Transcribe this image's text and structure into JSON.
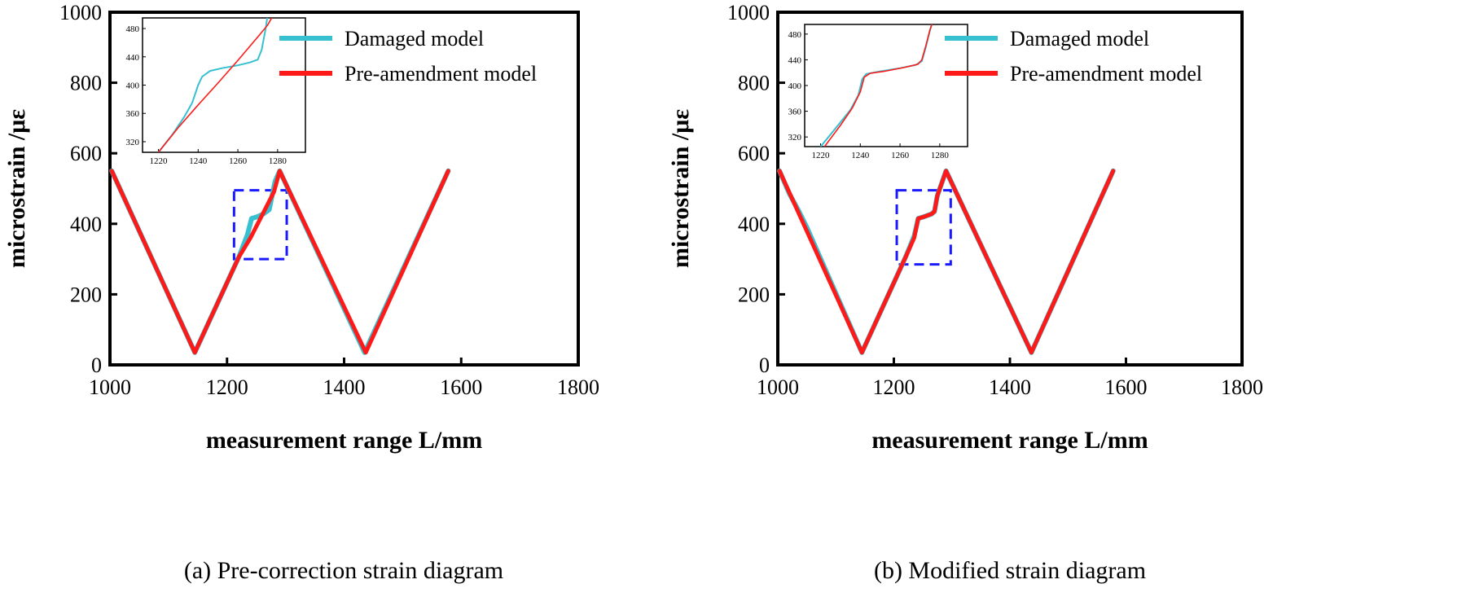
{
  "chart_data": [
    {
      "type": "line",
      "caption": "(a) Pre-correction strain diagram",
      "xlabel": "measurement range L/mm",
      "ylabel": "microstrain /με",
      "xlim": [
        1000,
        1800
      ],
      "ylim": [
        0,
        1000
      ],
      "xticks": [
        "1000",
        "1200",
        "1400",
        "1600",
        "1800"
      ],
      "yticks": [
        "0",
        "200",
        "400",
        "600",
        "800",
        "1000"
      ],
      "legend": {
        "position": "top-right",
        "entries": [
          "Damaged model",
          "Pre-amendment model"
        ]
      },
      "series": [
        {
          "name": "Damaged model",
          "color": "#36c0d0",
          "points": [
            [
              1003,
              550
            ],
            [
              1145,
              35
            ],
            [
              1220,
              305
            ],
            [
              1235,
              370
            ],
            [
              1242,
              415
            ],
            [
              1252,
              420
            ],
            [
              1262,
              428
            ],
            [
              1272,
              440
            ],
            [
              1282,
              520
            ],
            [
              1290,
              550
            ],
            [
              1435,
              35
            ],
            [
              1578,
              550
            ]
          ]
        },
        {
          "name": "Pre-amendment model",
          "color": "#ff1a1a",
          "points": [
            [
              1003,
              550
            ],
            [
              1145,
              35
            ],
            [
              1220,
              305
            ],
            [
              1240,
              360
            ],
            [
              1260,
              425
            ],
            [
              1280,
              490
            ],
            [
              1290,
              550
            ],
            [
              1437,
              35
            ],
            [
              1578,
              550
            ]
          ]
        }
      ],
      "zoom_box": {
        "x": [
          1212,
          1302
        ],
        "y": [
          300,
          495
        ]
      },
      "inset": {
        "xlim": [
          1212,
          1294
        ],
        "ylim": [
          305,
          495
        ],
        "xticks": [
          "1220",
          "1240",
          "1260",
          "1280"
        ],
        "yticks": [
          "320",
          "360",
          "400",
          "440",
          "480"
        ],
        "series": [
          {
            "name": "Damaged model",
            "color": "#36c0d0",
            "points": [
              [
                1220,
                305
              ],
              [
                1227,
                330
              ],
              [
                1233,
                355
              ],
              [
                1237,
                375
              ],
              [
                1240,
                400
              ],
              [
                1242,
                412
              ],
              [
                1246,
                420
              ],
              [
                1252,
                424
              ],
              [
                1260,
                428
              ],
              [
                1266,
                432
              ],
              [
                1270,
                436
              ],
              [
                1272,
                450
              ],
              [
                1274,
                480
              ],
              [
                1275,
                500
              ]
            ]
          },
          {
            "name": "Pre-amendment model",
            "color": "#ff1a1a",
            "points": [
              [
                1220,
                305
              ],
              [
                1230,
                340
              ],
              [
                1240,
                372
              ],
              [
                1250,
                403
              ],
              [
                1260,
                435
              ],
              [
                1270,
                468
              ],
              [
                1275,
                485
              ],
              [
                1278,
                500
              ]
            ]
          }
        ]
      }
    },
    {
      "type": "line",
      "caption": "(b) Modified strain diagram",
      "xlabel": "measurement range L/mm",
      "ylabel": "microstrain /με",
      "xlim": [
        1000,
        1800
      ],
      "ylim": [
        0,
        1000
      ],
      "xticks": [
        "1000",
        "1200",
        "1400",
        "1600",
        "1800"
      ],
      "yticks": [
        "0",
        "200",
        "400",
        "600",
        "800",
        "1000"
      ],
      "legend": {
        "position": "top-right",
        "entries": [
          "Damaged model",
          "Pre-amendment model"
        ]
      },
      "series": [
        {
          "name": "Damaged model",
          "color": "#36c0d0",
          "points": [
            [
              1003,
              550
            ],
            [
              1020,
              485
            ],
            [
              1035,
              440
            ],
            [
              1050,
              390
            ],
            [
              1145,
              35
            ],
            [
              1220,
              305
            ],
            [
              1235,
              365
            ],
            [
              1242,
              415
            ],
            [
              1252,
              420
            ],
            [
              1265,
              428
            ],
            [
              1270,
              435
            ],
            [
              1275,
              480
            ],
            [
              1290,
              550
            ],
            [
              1437,
              35
            ],
            [
              1578,
              550
            ]
          ]
        },
        {
          "name": "Pre-amendment model",
          "color": "#ff1a1a",
          "points": [
            [
              1003,
              550
            ],
            [
              1145,
              35
            ],
            [
              1220,
              305
            ],
            [
              1235,
              360
            ],
            [
              1242,
              415
            ],
            [
              1252,
              420
            ],
            [
              1265,
              428
            ],
            [
              1270,
              435
            ],
            [
              1275,
              480
            ],
            [
              1290,
              550
            ],
            [
              1437,
              35
            ],
            [
              1578,
              550
            ]
          ]
        }
      ],
      "zoom_box": {
        "x": [
          1205,
          1298
        ],
        "y": [
          285,
          495
        ]
      },
      "inset": {
        "xlim": [
          1212,
          1294
        ],
        "ylim": [
          305,
          495
        ],
        "xticks": [
          "1220",
          "1240",
          "1260",
          "1280"
        ],
        "yticks": [
          "320",
          "360",
          "400",
          "440",
          "480"
        ],
        "series": [
          {
            "name": "Damaged model",
            "color": "#36c0d0",
            "points": [
              [
                1220,
                305
              ],
              [
                1228,
                335
              ],
              [
                1235,
                362
              ],
              [
                1239,
                385
              ],
              [
                1241,
                410
              ],
              [
                1243,
                418
              ],
              [
                1250,
                422
              ],
              [
                1260,
                427
              ],
              [
                1268,
                432
              ],
              [
                1271,
                438
              ],
              [
                1273,
                460
              ],
              [
                1275,
                485
              ],
              [
                1276,
                495
              ]
            ]
          },
          {
            "name": "Pre-amendment model",
            "color": "#ff1a1a",
            "points": [
              [
                1222,
                305
              ],
              [
                1230,
                338
              ],
              [
                1236,
                365
              ],
              [
                1240,
                390
              ],
              [
                1242,
                413
              ],
              [
                1245,
                419
              ],
              [
                1252,
                422
              ],
              [
                1262,
                428
              ],
              [
                1269,
                433
              ],
              [
                1271,
                440
              ],
              [
                1273,
                462
              ],
              [
                1275,
                486
              ],
              [
                1276,
                495
              ]
            ]
          }
        ]
      }
    }
  ]
}
